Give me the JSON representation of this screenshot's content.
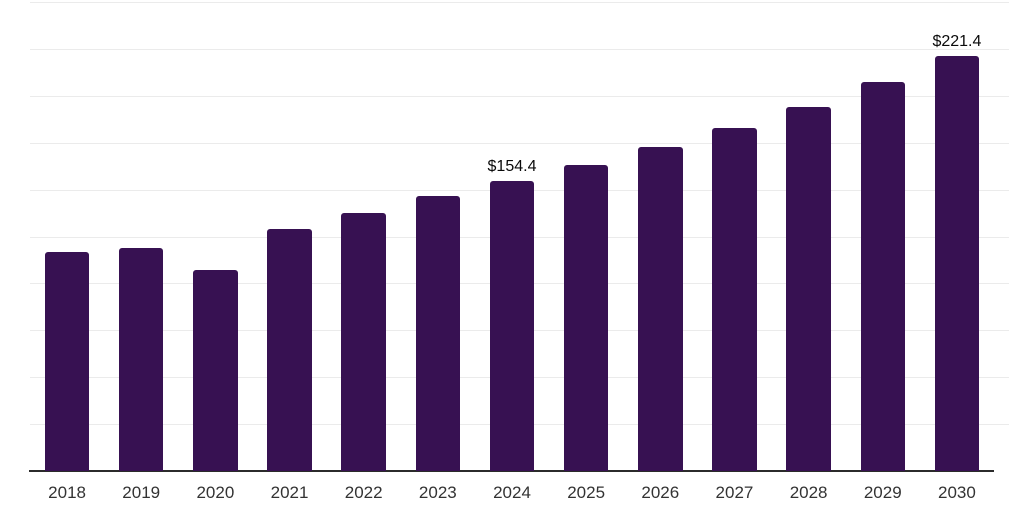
{
  "chart_data": {
    "type": "bar",
    "title": "",
    "xlabel": "",
    "ylabel": "",
    "categories": [
      "2018",
      "2019",
      "2020",
      "2021",
      "2022",
      "2023",
      "2024",
      "2025",
      "2026",
      "2027",
      "2028",
      "2029",
      "2030"
    ],
    "values": [
      117.0,
      119.0,
      107.0,
      129.2,
      137.5,
      146.4,
      154.4,
      163.1,
      172.5,
      182.6,
      194.1,
      207.1,
      221.4
    ],
    "annotations": [
      {
        "category": "2024",
        "text": "$154.4"
      },
      {
        "category": "2030",
        "text": "$221.4"
      }
    ],
    "ylim": [
      0,
      250
    ],
    "grid_interval": 25,
    "grid_on": true,
    "legend_position": "none",
    "colors": {
      "bar": "#371152",
      "gridline": "#ebebeb",
      "axis_line": "#2b2b2b",
      "tick_label": "#333333",
      "value_label": "#0a0a0a",
      "background": "#ffffff"
    }
  }
}
